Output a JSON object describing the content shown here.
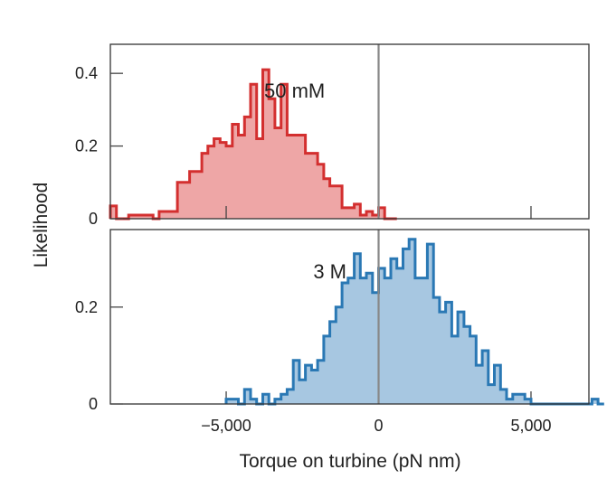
{
  "chart_data": [
    {
      "type": "histogram",
      "panel_label": "50 mM",
      "xlabel": "Torque on turbine (pN nm)",
      "ylabel": "Likelihood",
      "xlim": [
        -8800,
        6900
      ],
      "ylim": [
        0,
        0.48
      ],
      "y_ticks": [
        0,
        0.2,
        0.4
      ],
      "y_tick_labels": [
        "0",
        "0.2",
        "0.4"
      ],
      "x_ticks": [
        -5000,
        0,
        5000
      ],
      "bin_width": 200,
      "bin_start": -8800,
      "values": [
        0.035,
        0,
        0,
        0.01,
        0.01,
        0.01,
        0.01,
        0,
        0.02,
        0.02,
        0.02,
        0.1,
        0.1,
        0.13,
        0.13,
        0.18,
        0.2,
        0.22,
        0.21,
        0.2,
        0.26,
        0.23,
        0.28,
        0.37,
        0.22,
        0.41,
        0.33,
        0.25,
        0.37,
        0.23,
        0.23,
        0.23,
        0.18,
        0.18,
        0.15,
        0.11,
        0.09,
        0.09,
        0.03,
        0.03,
        0.04,
        0.01,
        0.02,
        0.01,
        0.03,
        0,
        0
      ],
      "color": "#d32f2f",
      "fill": "#eea6a6"
    },
    {
      "type": "histogram",
      "panel_label": "3 M",
      "xlabel": "Torque on turbine (pN nm)",
      "ylabel": "Likelihood",
      "xlim": [
        -8800,
        6900
      ],
      "ylim": [
        0,
        0.36
      ],
      "y_ticks": [
        0,
        0.2
      ],
      "y_tick_labels": [
        "0",
        "0.2"
      ],
      "x_ticks": [
        -5000,
        0,
        5000
      ],
      "x_tick_labels": [
        "−5,000",
        "0",
        "5,000"
      ],
      "bin_width": 200,
      "bin_start": -5000,
      "values": [
        0.01,
        0.01,
        0,
        0.03,
        0.01,
        0,
        0.02,
        0,
        0.01,
        0.02,
        0.03,
        0.09,
        0.05,
        0.08,
        0.07,
        0.09,
        0.14,
        0.17,
        0.2,
        0.25,
        0.26,
        0.31,
        0.26,
        0.27,
        0.23,
        0.28,
        0.26,
        0.3,
        0.28,
        0.32,
        0.34,
        0.26,
        0.26,
        0.33,
        0.22,
        0.19,
        0.21,
        0.14,
        0.19,
        0.16,
        0.14,
        0.08,
        0.11,
        0.04,
        0.08,
        0.03,
        0.01,
        0.02,
        0.02,
        0.01,
        0,
        0,
        0,
        0,
        0,
        0,
        0,
        0,
        0,
        0,
        0.01,
        0
      ],
      "color": "#2a78b4",
      "fill": "#a7c7e1"
    }
  ]
}
